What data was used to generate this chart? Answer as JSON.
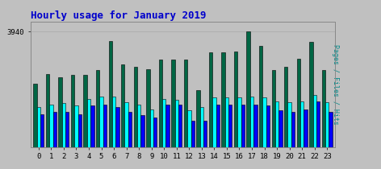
{
  "title": "Hourly usage for January 2019",
  "title_color": "#0000cc",
  "title_fontsize": 9,
  "background_color": "#c0c0c0",
  "plot_bg_color": "#c0c0c0",
  "ylabel_right": "Pages / Files / Hits",
  "ylabel_right_color": "#008888",
  "hours": [
    0,
    1,
    2,
    3,
    4,
    5,
    6,
    7,
    8,
    9,
    10,
    11,
    12,
    13,
    14,
    15,
    16,
    17,
    18,
    19,
    20,
    21,
    22,
    23
  ],
  "hits": [
    3720,
    3760,
    3745,
    3755,
    3755,
    3775,
    3900,
    3800,
    3790,
    3780,
    3820,
    3820,
    3820,
    3690,
    3850,
    3850,
    3855,
    3940,
    3880,
    3775,
    3790,
    3825,
    3895,
    3775
  ],
  "files": [
    3620,
    3630,
    3635,
    3625,
    3655,
    3665,
    3665,
    3640,
    3630,
    3610,
    3655,
    3650,
    3605,
    3620,
    3660,
    3660,
    3660,
    3665,
    3660,
    3645,
    3640,
    3645,
    3670,
    3640
  ],
  "pages": [
    3590,
    3600,
    3600,
    3590,
    3625,
    3630,
    3620,
    3600,
    3585,
    3575,
    3630,
    3630,
    3560,
    3560,
    3630,
    3630,
    3630,
    3630,
    3625,
    3605,
    3600,
    3610,
    3645,
    3600
  ],
  "hits_color": "#006644",
  "files_color": "#00ffff",
  "pages_color": "#0000ff",
  "bar_edge_color": "#000000",
  "bar_width": 0.28,
  "ymin": 3450,
  "ymax": 3980,
  "ytick_val": 3940,
  "ytick_pos": 3940
}
